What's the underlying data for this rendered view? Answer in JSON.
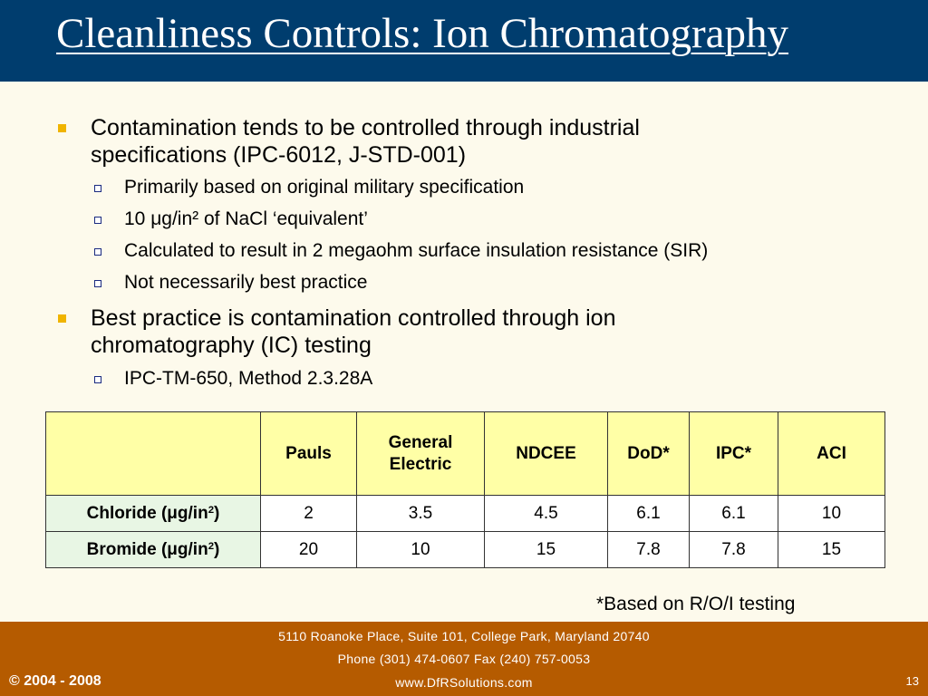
{
  "title": "Cleanliness Controls: Ion Chromatography",
  "bullets": [
    {
      "text": "Contamination tends to be controlled through industrial specifications (IPC-6012, J-STD-001)",
      "subs": [
        "Primarily based on original military specification",
        "10 μg/in² of NaCl ‘equivalent’",
        "Calculated to result in 2 megaohm surface insulation resistance (SIR)",
        "Not necessarily best practice"
      ]
    },
    {
      "text": "Best practice is contamination controlled through ion chromatography (IC) testing",
      "subs": [
        "IPC-TM-650, Method 2.3.28A"
      ]
    }
  ],
  "table": {
    "headers": [
      "",
      "Pauls",
      "General Electric",
      "NDCEE",
      "DoD*",
      "IPC*",
      "ACI"
    ],
    "rows": [
      {
        "label_text": "Chloride (μg/in",
        "label_sup": "2",
        "label_end": ")",
        "values": [
          "2",
          "3.5",
          "4.5",
          "6.1",
          "6.1",
          "10"
        ]
      },
      {
        "label_text": "Bromide (μg/in",
        "label_sup": "2",
        "label_end": ")",
        "values": [
          "20",
          "10",
          "15",
          "7.8",
          "7.8",
          "15"
        ]
      }
    ]
  },
  "footnote": "*Based on R/O/I testing",
  "footer": {
    "address": "5110 Roanoke Place, Suite 101, College Park, Maryland 20740",
    "phone": "Phone (301) 474-0607  Fax (240) 757-0053",
    "website": "www.DfRSolutions.com",
    "copyright": "© 2004 - 2008",
    "page_number": "13"
  },
  "colors": {
    "title_bar": "#003d6e",
    "footer_bar": "#b55b00",
    "bullet_mark": "#f0b400",
    "header_cell": "#ffffa6",
    "row_label_cell": "#e8f6e4"
  }
}
